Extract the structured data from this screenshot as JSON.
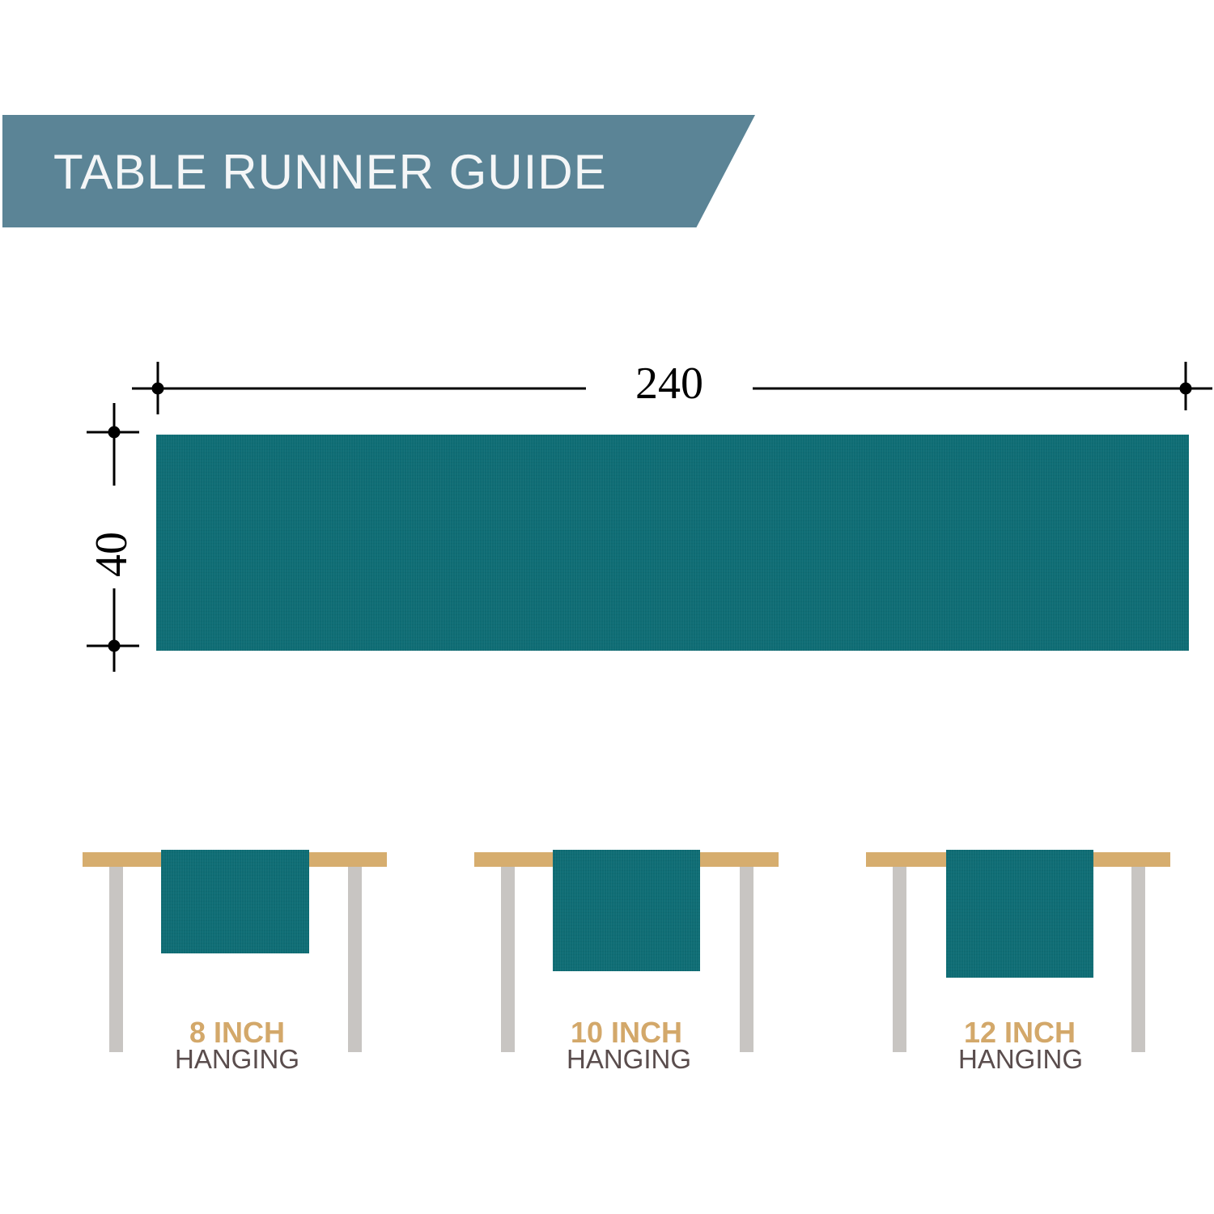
{
  "title": "TABLE RUNNER GUIDE",
  "dimensions": {
    "length": "240",
    "width": "40"
  },
  "hanging_options": [
    {
      "amount": "8 INCH",
      "label": "HANGING",
      "hang_inches": 8
    },
    {
      "amount": "10 INCH",
      "label": "HANGING",
      "hang_inches": 10
    },
    {
      "amount": "12 INCH",
      "label": "HANGING",
      "hang_inches": 12
    }
  ],
  "colors": {
    "banner": "#5b8496",
    "runner": "#0f6d75",
    "table_top": "#d6ad6e",
    "table_leg": "#c8c5c2",
    "amount_text": "#d3a86a",
    "label_text": "#5a4d4d"
  }
}
